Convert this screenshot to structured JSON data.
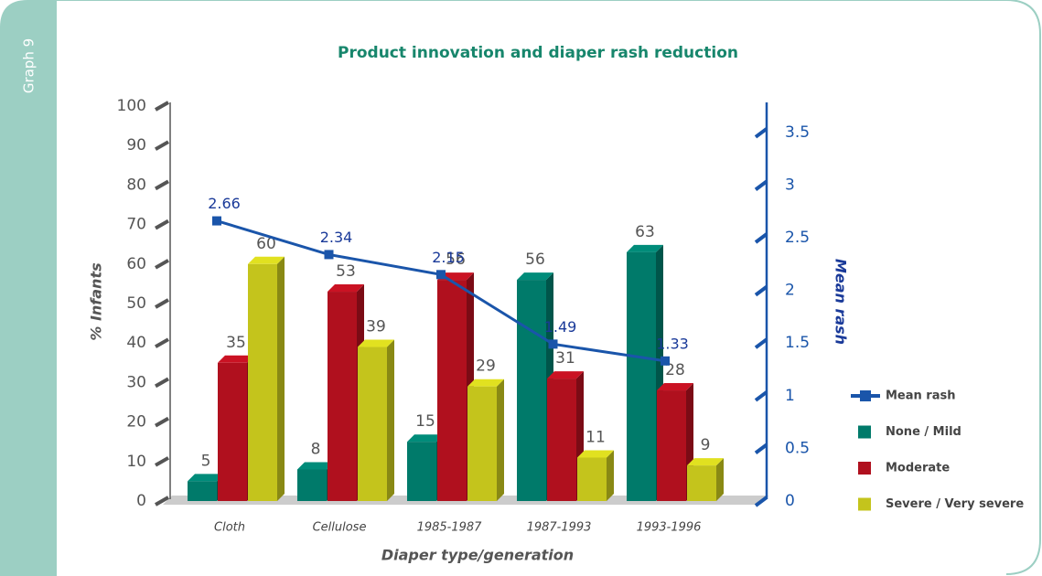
{
  "sidebar": "Graph 9",
  "chart_data": {
    "type": "bar",
    "title": "Product innovation and diaper rash reduction",
    "categories": [
      "Cloth",
      "Cellulose",
      "1985-1987",
      "1987-1993",
      "1993-1996"
    ],
    "series": [
      {
        "name": "None / Mild",
        "color": "#007a6a",
        "values": [
          5,
          8,
          15,
          56,
          63
        ]
      },
      {
        "name": "Moderate",
        "color": "#b0101e",
        "values": [
          35,
          53,
          56,
          31,
          28
        ]
      },
      {
        "name": "Severe / Very severe",
        "color": "#c4c41c",
        "values": [
          60,
          39,
          29,
          11,
          9
        ]
      },
      {
        "name": "Mean rash",
        "type": "line",
        "axis": "y2",
        "color": "#1a55aa",
        "values": [
          2.66,
          2.34,
          2.15,
          1.49,
          1.33
        ]
      }
    ],
    "ylabel": "% Infants",
    "y2label": "Mean rash",
    "xlabel": "Diaper type/generation",
    "ylim": [
      0,
      100
    ],
    "yticks": [
      0,
      10,
      20,
      30,
      40,
      50,
      60,
      70,
      80,
      90,
      100
    ],
    "y2lim": [
      0,
      3.75
    ],
    "y2ticks": [
      0,
      0.5,
      1,
      1.5,
      2,
      2.5,
      3,
      3.5
    ]
  }
}
